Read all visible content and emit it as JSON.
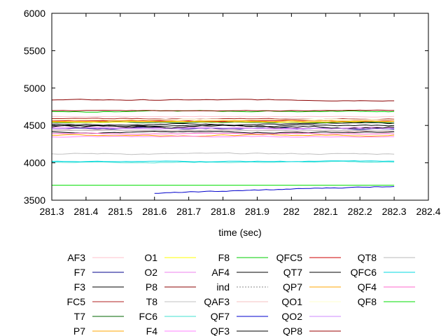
{
  "chart_data": {
    "type": "line",
    "xlabel": "time (sec)",
    "ylabel": "",
    "xlim": [
      281.3,
      282.4
    ],
    "ylim": [
      3500,
      6000
    ],
    "x_ticks": [
      281.3,
      281.4,
      281.5,
      281.6,
      281.7,
      281.8,
      281.9,
      282.0,
      282.1,
      282.2,
      282.3,
      282.4
    ],
    "x_tick_labels": [
      "281.3",
      "281.4",
      "281.5",
      "281.6",
      "281.7",
      "281.8",
      "281.9",
      "282",
      "282.1",
      "282.2",
      "282.3",
      "282.4"
    ],
    "y_ticks": [
      3500,
      4000,
      4500,
      5000,
      5500,
      6000
    ],
    "y_tick_labels": [
      "3500",
      "4000",
      "4500",
      "5000",
      "5500",
      "6000"
    ],
    "grid": false,
    "legend_placement": "bottom",
    "x_start": 281.3,
    "x_end": 282.3,
    "series": [
      {
        "name": "AF3",
        "color": "#ffc0cb",
        "base": 4620,
        "noise": 8
      },
      {
        "name": "F7",
        "color": "#00008b",
        "base": 4460,
        "noise": 15
      },
      {
        "name": "F3",
        "color": "#000000",
        "base": 4520,
        "noise": 15
      },
      {
        "name": "FC5",
        "color": "#b22222",
        "base": 4590,
        "noise": 10
      },
      {
        "name": "T7",
        "color": "#006400",
        "base": 4540,
        "noise": 10
      },
      {
        "name": "P7",
        "color": "#ffa500",
        "base": 4370,
        "noise": 12
      },
      {
        "name": "O1",
        "color": "#ffff00",
        "base": 4550,
        "noise": 8
      },
      {
        "name": "O2",
        "color": "#ee82ee",
        "base": 4470,
        "noise": 10
      },
      {
        "name": "P8",
        "color": "#8b0000",
        "base": 4840,
        "noise": 10
      },
      {
        "name": "T8",
        "color": "#c0c0c0",
        "base": 4120,
        "noise": 12
      },
      {
        "name": "FC6",
        "color": "#40e0d0",
        "base": 4010,
        "noise": 10
      },
      {
        "name": "F4",
        "color": "#ff80ff",
        "base": 4350,
        "noise": 10
      },
      {
        "name": "F8",
        "color": "#00cc00",
        "base": 4690,
        "noise": 12
      },
      {
        "name": "AF4",
        "color": "#000000",
        "base": 4480,
        "noise": 25
      },
      {
        "name": "ind",
        "color": "#000000",
        "base": null,
        "noise": 0,
        "dashed": true
      },
      {
        "name": "QAF3",
        "color": "#f4c2c2",
        "base": 4430,
        "noise": 15
      },
      {
        "name": "QF7",
        "color": "#0000cc",
        "base": 3590,
        "noise": 10,
        "start": 281.6,
        "trend": 100
      },
      {
        "name": "QF3",
        "color": "#000000",
        "base": 4410,
        "noise": 12
      },
      {
        "name": "QFC5",
        "color": "#cc0000",
        "base": 4560,
        "noise": 8
      },
      {
        "name": "QT7",
        "color": "#000000",
        "base": 4500,
        "noise": 12
      },
      {
        "name": "QP7",
        "color": "#ffa500",
        "base": 4560,
        "noise": 8
      },
      {
        "name": "QO1",
        "color": "#ffffcc",
        "base": 4580,
        "noise": 6
      },
      {
        "name": "QO2",
        "color": "#cc88ff",
        "base": 4460,
        "noise": 10
      },
      {
        "name": "QP8",
        "color": "#990000",
        "base": 4700,
        "noise": 6
      },
      {
        "name": "QT8",
        "color": "#b8b8b8",
        "base": 4430,
        "noise": 8
      },
      {
        "name": "QFC6",
        "color": "#00d8e0",
        "base": 4020,
        "noise": 8
      },
      {
        "name": "QF4",
        "color": "#ff66cc",
        "base": 4390,
        "noise": 8
      },
      {
        "name": "QF8",
        "color": "#00dd00",
        "base": 3700,
        "noise": 0
      }
    ]
  }
}
